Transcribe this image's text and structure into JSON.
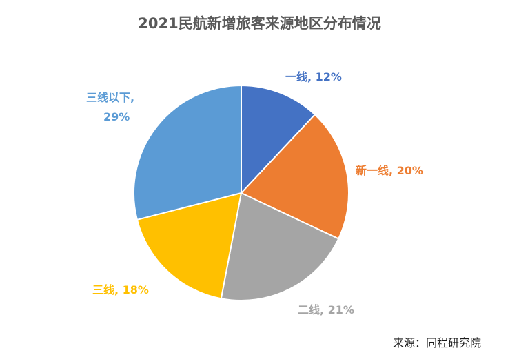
{
  "chart_data": {
    "type": "pie",
    "title": "2021民航新增旅客来源地区分布情况",
    "slices": [
      {
        "name": "一线",
        "value": 12,
        "label": "一线, 12%",
        "color": "#4472C4"
      },
      {
        "name": "新一线",
        "value": 20,
        "label": "新一线, 20%",
        "color": "#ED7D31"
      },
      {
        "name": "二线",
        "value": 21,
        "label": "二线, 21%",
        "color": "#A5A5A5"
      },
      {
        "name": "三线",
        "value": 18,
        "label": "三线, 18%",
        "color": "#FFC000"
      },
      {
        "name": "三线以下",
        "value": 29,
        "label_line1": "三线以下,",
        "label_line2": "29%",
        "color": "#5B9BD5"
      }
    ]
  },
  "source": "来源：同程研究院"
}
